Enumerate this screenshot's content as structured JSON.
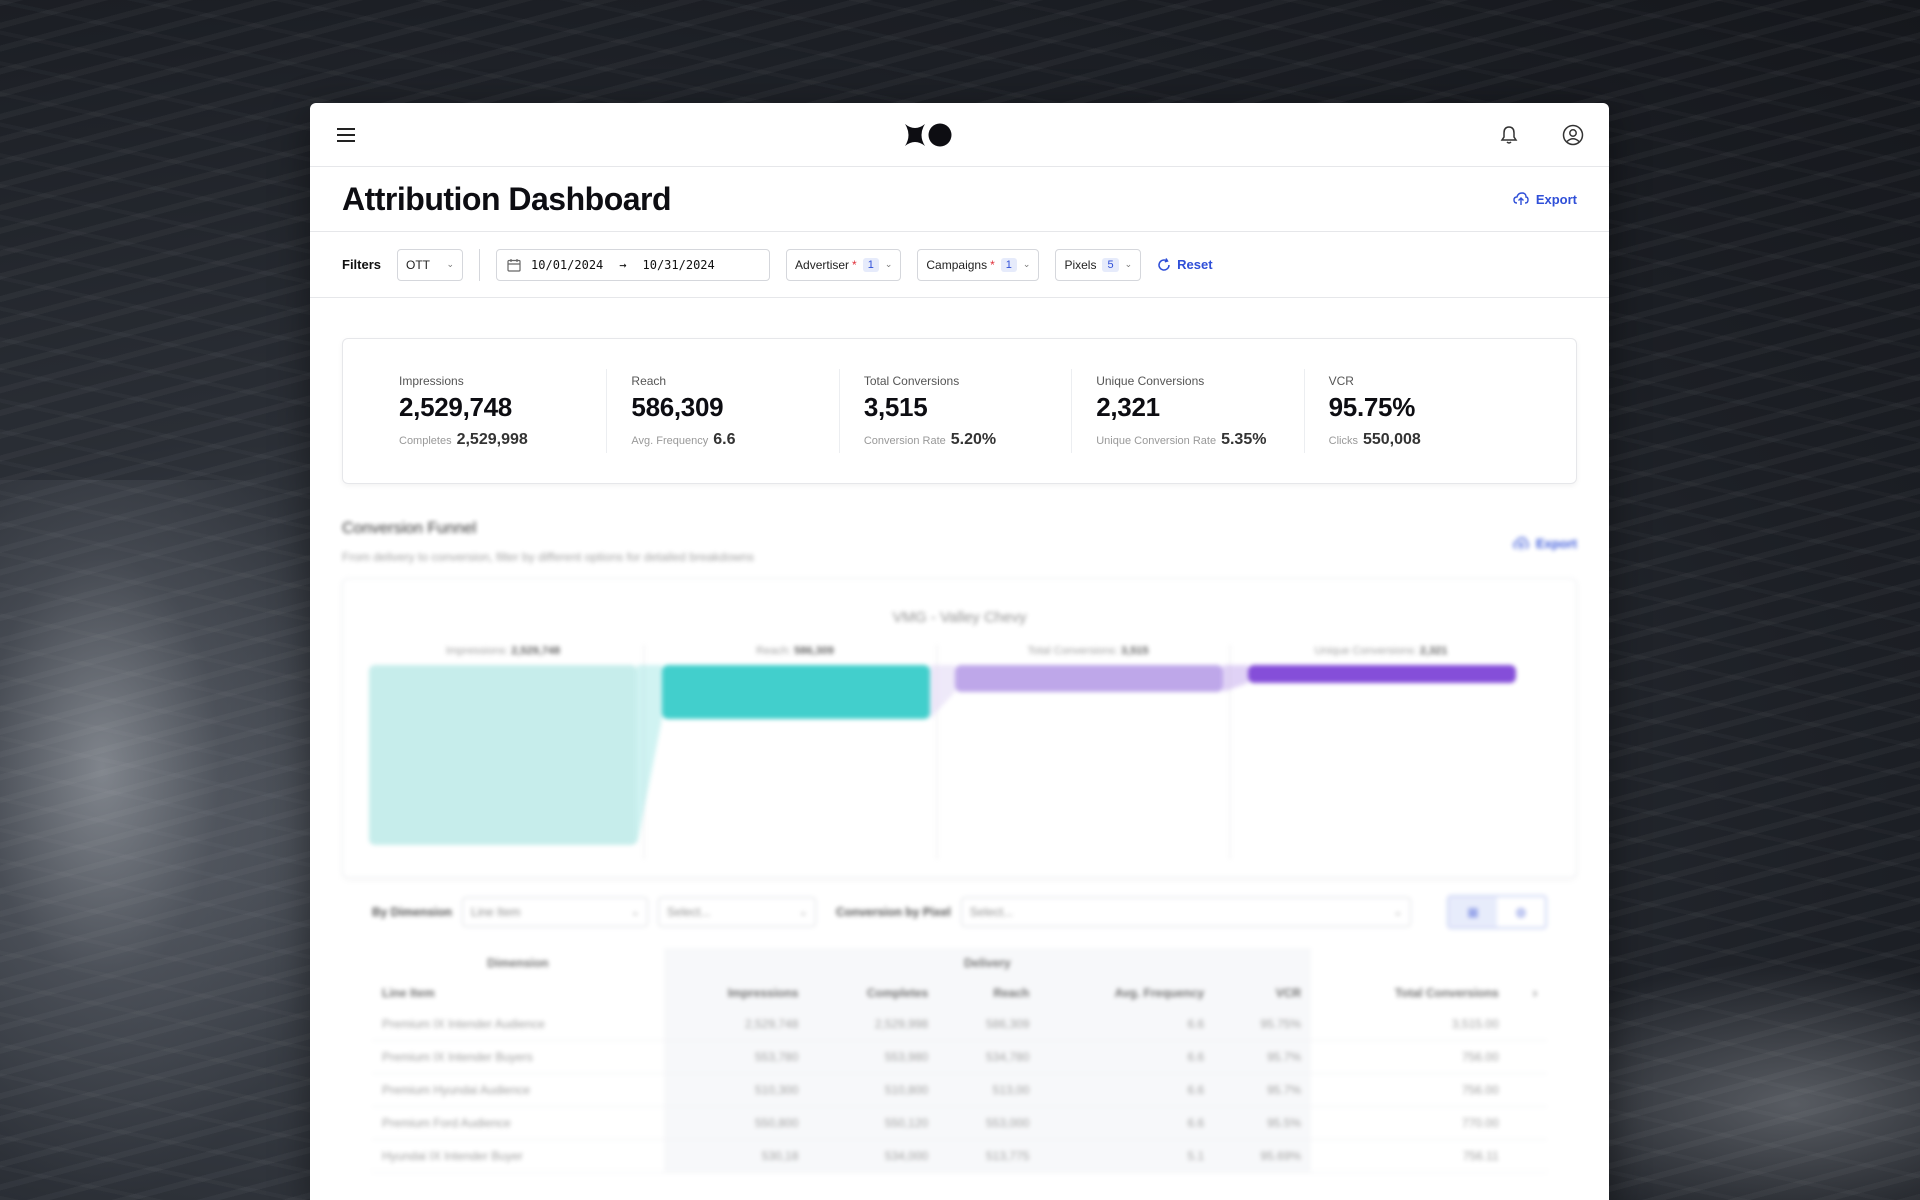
{
  "header": {
    "title": "Attribution Dashboard",
    "export_label": "Export"
  },
  "filters": {
    "label": "Filters",
    "channel": "OTT",
    "date_start": "10/01/2024",
    "date_end": "10/31/2024",
    "advertiser_label": "Advertiser",
    "advertiser_required": "*",
    "advertiser_count": "1",
    "campaigns_label": "Campaigns",
    "campaigns_required": "*",
    "campaigns_count": "1",
    "pixels_label": "Pixels",
    "pixels_count": "5",
    "reset_label": "Reset"
  },
  "kpis": [
    {
      "label": "Impressions",
      "value": "2,529,748",
      "sub_label": "Completes",
      "sub_value": "2,529,998"
    },
    {
      "label": "Reach",
      "value": "586,309",
      "sub_label": "Avg. Frequency",
      "sub_value": "6.6"
    },
    {
      "label": "Total Conversions",
      "value": "3,515",
      "sub_label": "Conversion Rate",
      "sub_value": "5.20%"
    },
    {
      "label": "Unique Conversions",
      "value": "2,321",
      "sub_label": "Unique Conversion Rate",
      "sub_value": "5.35%"
    },
    {
      "label": "VCR",
      "value": "95.75%",
      "sub_label": "Clicks",
      "sub_value": "550,008"
    }
  ],
  "funnel": {
    "section_title": "Conversion Funnel",
    "section_subtitle": "From delivery to conversion, filter by different options for detailed breakdowns",
    "export_label": "Export",
    "chart_title": "VMG - Valley Chevy",
    "stages": [
      {
        "label": "Impressions:",
        "value": "2,529,748",
        "fraction": 1.0,
        "color": "#c2ecea"
      },
      {
        "label": "Reach:",
        "value": "586,309",
        "fraction": 0.3,
        "color": "#33cbc8"
      },
      {
        "label": "Total Conversions:",
        "value": "3,515",
        "fraction": 0.15,
        "color": "#b9a0e8"
      },
      {
        "label": "Unique Conversions:",
        "value": "2,321",
        "fraction": 0.1,
        "color": "#7b3fd6"
      }
    ]
  },
  "table": {
    "dimension_label": "By Dimension",
    "dimension_value": "Line Item",
    "select_placeholder": "Select...",
    "pixel_label": "Conversion by Pixel",
    "pixel_placeholder": "Select...",
    "group_dimension": "Dimension",
    "group_delivery": "Delivery",
    "columns": [
      "Line Item",
      "Impressions",
      "Completes",
      "Reach",
      "Avg. Frequency",
      "VCR",
      "Total Conversions"
    ],
    "rows": [
      [
        "Premium IX Intender Audience",
        "2,529,748",
        "2,529,998",
        "586,309",
        "6.6",
        "95.75%",
        "3,515.00"
      ],
      [
        "Premium IX Intender Buyers",
        "553,780",
        "553,980",
        "534,780",
        "6.6",
        "95.7%",
        "756.00"
      ],
      [
        "Premium Hyundai Audience",
        "510,300",
        "510,800",
        "513,00",
        "6.6",
        "95.7%",
        "756.00"
      ],
      [
        "Premium Ford Audience",
        "550,800",
        "550,120",
        "553,000",
        "6.6",
        "95.5%",
        "770.00"
      ],
      [
        "Hyundai IX Intender Buyer",
        "530,18",
        "534,000",
        "513,775",
        "5.1",
        "95.69%",
        "756.11"
      ]
    ]
  },
  "colors": {
    "accent": "#2f4fd8",
    "required": "#e0303a"
  }
}
